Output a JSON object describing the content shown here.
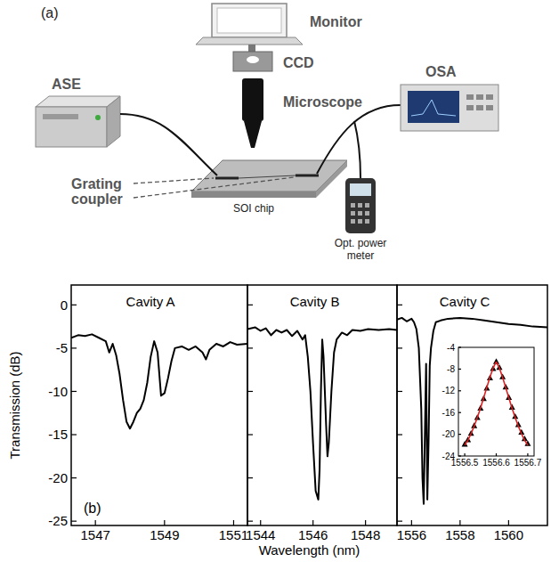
{
  "diagram": {
    "label": "(a)",
    "monitor": "Monitor",
    "ccd": "CCD",
    "microscope": "Microscope",
    "source": "ASE",
    "analyzer": "OSA",
    "chip": "SOI chip",
    "coupler": "Grating coupler",
    "meter": "Opt. power meter"
  },
  "chart_data": [
    {
      "type": "line",
      "title": "Cavity A",
      "panel_label": "(b)",
      "ylabel": "Transmission (dB)",
      "color": "#000000",
      "xlim": [
        1546.3,
        1551.4
      ],
      "xticks": [
        1547,
        1549,
        1551
      ],
      "ylim": [
        -25.5,
        2.3
      ],
      "yticks": [
        0,
        -5,
        -10,
        -15,
        -20,
        -25
      ],
      "x": [
        1546.3,
        1546.5,
        1546.7,
        1546.9,
        1547.1,
        1547.3,
        1547.4,
        1547.5,
        1547.6,
        1547.7,
        1547.8,
        1547.9,
        1548.0,
        1548.1,
        1548.2,
        1548.3,
        1548.4,
        1548.5,
        1548.6,
        1548.7,
        1548.8,
        1548.9,
        1549.0,
        1549.1,
        1549.2,
        1549.3,
        1549.5,
        1549.7,
        1549.9,
        1550.1,
        1550.2,
        1550.3,
        1550.5,
        1550.7,
        1550.9,
        1551.1,
        1551.4
      ],
      "values": [
        -3.8,
        -3.5,
        -3.6,
        -3.4,
        -3.8,
        -4.2,
        -5.5,
        -4.5,
        -5.8,
        -8,
        -11,
        -13.5,
        -14.3,
        -13.5,
        -12.5,
        -12,
        -11,
        -9,
        -6,
        -4.2,
        -5.5,
        -10.5,
        -10.2,
        -8.5,
        -6.5,
        -5,
        -4.8,
        -5.2,
        -4.8,
        -5.5,
        -6.3,
        -5.2,
        -4.5,
        -4.8,
        -4.3,
        -4.6,
        -4.5
      ]
    },
    {
      "type": "line",
      "title": "Cavity B",
      "xlabel": "Wavelength (nm)",
      "color": "#000000",
      "tick_labels": "x",
      "xlim": [
        1543.5,
        1549.2
      ],
      "xticks": [
        1544,
        1546,
        1548
      ],
      "ylim": [
        -25.5,
        2.3
      ],
      "yticks": [
        0,
        -5,
        -10,
        -15,
        -20,
        -25
      ],
      "x": [
        1543.5,
        1543.8,
        1544.0,
        1544.2,
        1544.4,
        1544.6,
        1544.8,
        1545.0,
        1545.2,
        1545.4,
        1545.6,
        1545.7,
        1545.8,
        1545.9,
        1546.0,
        1546.1,
        1546.2,
        1546.25,
        1546.3,
        1546.35,
        1546.4,
        1546.5,
        1546.55,
        1546.6,
        1546.7,
        1546.8,
        1546.9,
        1547.1,
        1547.3,
        1547.5,
        1547.8,
        1548.1,
        1548.5,
        1548.9,
        1549.2
      ],
      "values": [
        -2.8,
        -2.6,
        -3.0,
        -2.7,
        -3.5,
        -2.9,
        -3.2,
        -2.9,
        -3.6,
        -3.0,
        -4.0,
        -3.5,
        -6,
        -10,
        -16,
        -21.5,
        -22.5,
        -19,
        -10,
        -4,
        -6,
        -14,
        -17.5,
        -16,
        -10,
        -5.5,
        -4.0,
        -3.2,
        -3.5,
        -2.9,
        -3.0,
        -2.8,
        -2.9,
        -2.8,
        -2.9
      ]
    },
    {
      "type": "line",
      "title": "Cavity C",
      "color": "#000000",
      "tick_labels": "x",
      "xlim": [
        1555.4,
        1561.6
      ],
      "xticks": [
        1556,
        1558,
        1560
      ],
      "ylim": [
        -25.5,
        2.3
      ],
      "yticks": [
        0,
        -5,
        -10,
        -15,
        -20,
        -25
      ],
      "x": [
        1555.4,
        1555.6,
        1555.8,
        1556.0,
        1556.1,
        1556.2,
        1556.3,
        1556.4,
        1556.45,
        1556.5,
        1556.55,
        1556.6,
        1556.65,
        1556.7,
        1556.75,
        1556.8,
        1556.9,
        1557.0,
        1557.2,
        1557.5,
        1558,
        1558.5,
        1559,
        1559.5,
        1560,
        1560.5,
        1561,
        1561.6
      ],
      "values": [
        -1.7,
        -1.5,
        -1.9,
        -1.6,
        -2.0,
        -2.8,
        -5,
        -12,
        -20,
        -23,
        -15,
        -6.8,
        -22.5,
        -16,
        -7,
        -5,
        -3,
        -2.0,
        -1.8,
        -1.6,
        -1.5,
        -1.6,
        -1.8,
        -2.0,
        -2.2,
        -2.3,
        -2.5,
        -2.6
      ]
    },
    {
      "type": "line",
      "xlim": [
        1556.48,
        1556.72
      ],
      "xticks": [
        1556.5,
        1556.6,
        1556.7
      ],
      "ylim": [
        -24,
        -4
      ],
      "yticks": [
        -4,
        -8,
        -12,
        -16,
        -20,
        -24
      ],
      "x": [
        1556.5,
        1556.51,
        1556.52,
        1556.53,
        1556.54,
        1556.55,
        1556.56,
        1556.57,
        1556.58,
        1556.59,
        1556.6,
        1556.61,
        1556.62,
        1556.63,
        1556.64,
        1556.65,
        1556.66,
        1556.67,
        1556.68,
        1556.69,
        1556.7
      ],
      "series": [
        {
          "type": "scatter",
          "marker": "triangle",
          "color": "#000000",
          "values": [
            -21.8,
            -21.0,
            -19.8,
            -18.4,
            -16.9,
            -15.2,
            -13.4,
            -11.5,
            -9.6,
            -7.9,
            -6.6,
            -7.7,
            -9.4,
            -11.3,
            -13.2,
            -15.0,
            -16.7,
            -18.2,
            -19.6,
            -20.8,
            -21.7
          ]
        },
        {
          "type": "line",
          "line_style": "solid",
          "color": "#e02020",
          "values": [
            -22.0,
            -21.1,
            -19.9,
            -18.5,
            -16.9,
            -15.2,
            -13.3,
            -11.4,
            -9.5,
            -7.8,
            -6.7,
            -7.8,
            -9.5,
            -11.4,
            -13.3,
            -15.2,
            -16.9,
            -18.5,
            -19.9,
            -21.1,
            -22.0
          ]
        }
      ]
    }
  ]
}
